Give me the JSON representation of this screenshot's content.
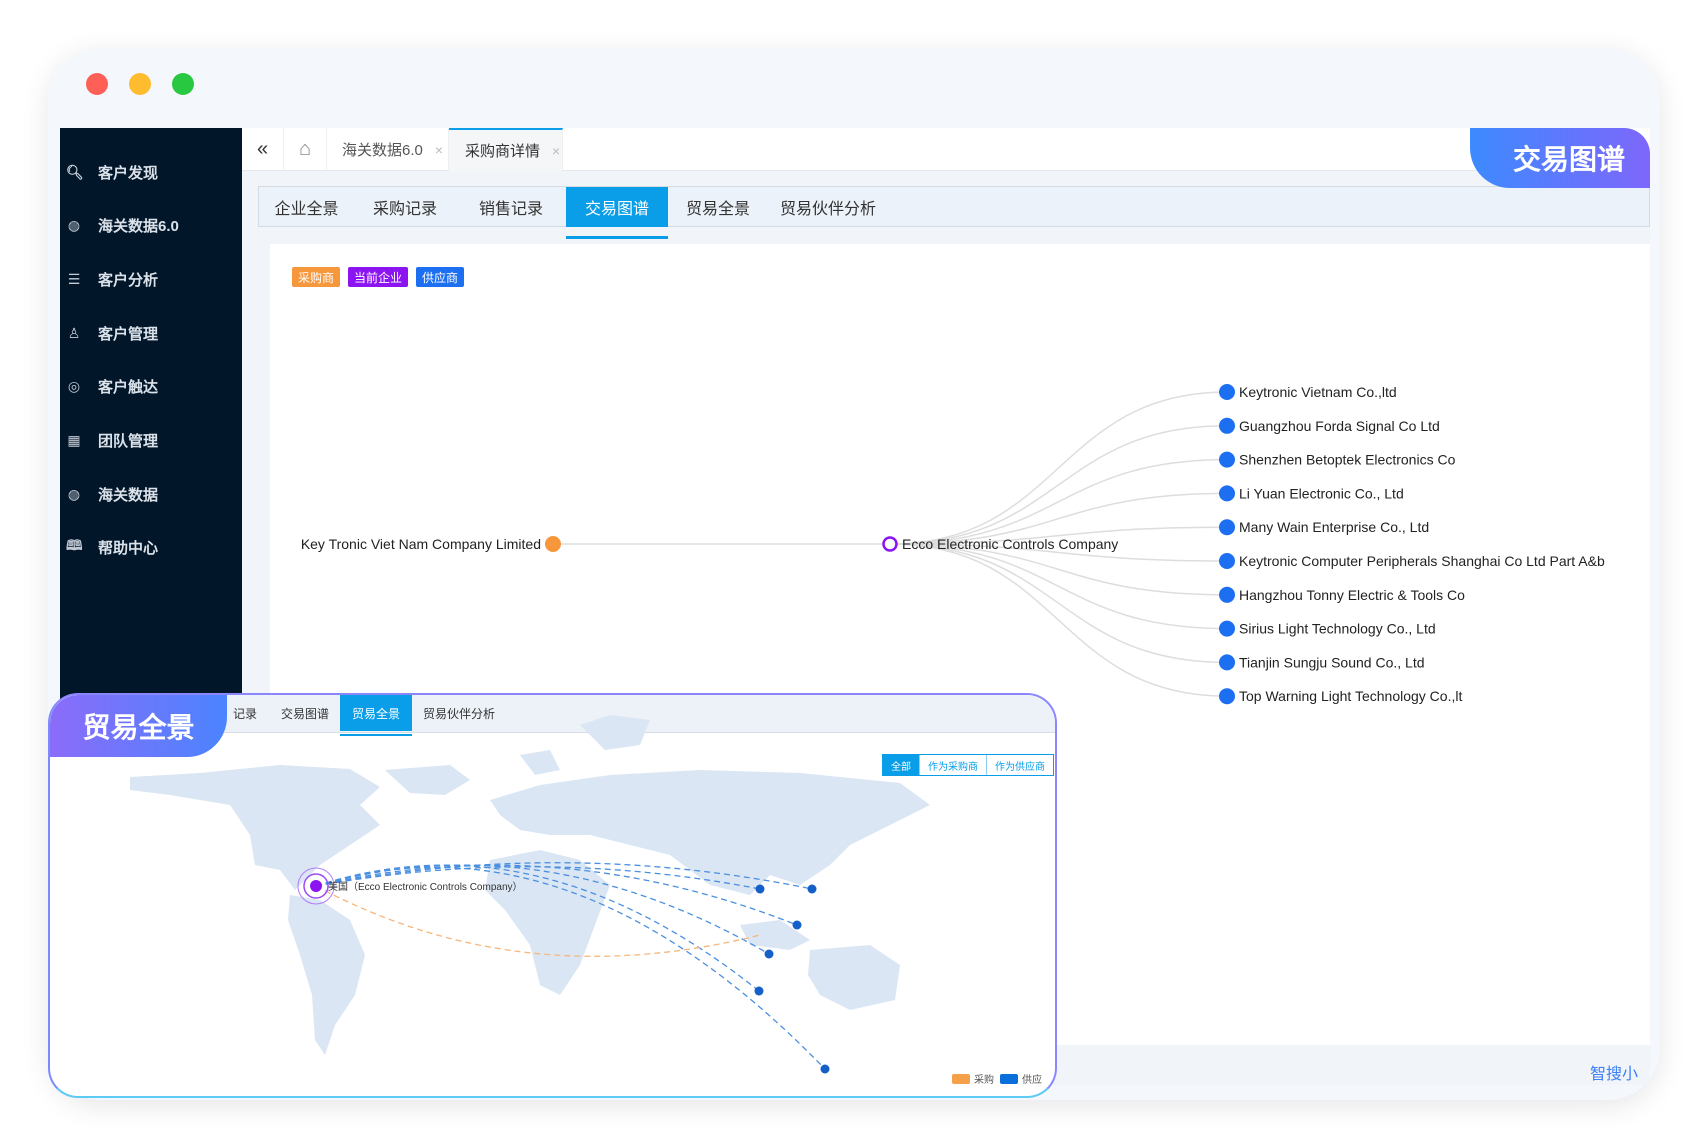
{
  "window": {
    "controls": [
      "close",
      "minimize",
      "maximize"
    ],
    "colors": {
      "close": "#fe5f57",
      "minimize": "#febc2e",
      "maximize": "#28c840"
    }
  },
  "sidebar": {
    "items": [
      {
        "label": "客户发现",
        "icon": "search-icon"
      },
      {
        "label": "海关数据6.0",
        "icon": "globe-icon"
      },
      {
        "label": "客户分析",
        "icon": "list-icon"
      },
      {
        "label": "客户管理",
        "icon": "user-icon"
      },
      {
        "label": "客户触达",
        "icon": "target-icon"
      },
      {
        "label": "团队管理",
        "icon": "grid-icon"
      },
      {
        "label": "海关数据",
        "icon": "globe-icon"
      },
      {
        "label": "帮助中心",
        "icon": "book-icon"
      }
    ]
  },
  "tabbar": {
    "collapse": "«",
    "home": "⌂",
    "tabs": [
      {
        "label": "海关数据6.0",
        "close": "×"
      },
      {
        "label": "采购商详情",
        "close": "×",
        "active": true
      }
    ]
  },
  "subtabs": [
    {
      "label": "企业全景"
    },
    {
      "label": "采购记录"
    },
    {
      "label": "销售记录"
    },
    {
      "label": "交易图谱",
      "active": true
    },
    {
      "label": "贸易全景"
    },
    {
      "label": "贸易伙伴分析"
    }
  ],
  "legend_tags": [
    {
      "label": "采购商",
      "color": "#f7973c"
    },
    {
      "label": "当前企业",
      "color": "#8b14f0"
    },
    {
      "label": "供应商",
      "color": "#1d6ff2"
    }
  ],
  "graph": {
    "buyer": "Key Tronic Viet Nam Company Limited",
    "current": "Ecco Electronic Controls Company",
    "suppliers": [
      "Keytronic Vietnam Co.,ltd",
      "Guangzhou Forda Signal Co Ltd",
      "Shenzhen Betoptek Electronics Co",
      "Li Yuan Electronic Co., Ltd",
      "Many Wain Enterprise Co., Ltd",
      "Keytronic Computer Peripherals Shanghai Co Ltd Part A&b",
      "Hangzhou Tonny Electric & Tools Co",
      "Sirius Light Technology Co., Ltd",
      "Tianjin Sungju Sound Co., Ltd",
      "Top Warning Light Technology Co.,lt"
    ]
  },
  "badges": {
    "graph": "交易图谱",
    "overview": "贸易全景"
  },
  "footer_brand": "智搜小",
  "overlay": {
    "tabs": [
      {
        "label": "记录"
      },
      {
        "label": "交易图谱"
      },
      {
        "label": "贸易全景",
        "active": true
      },
      {
        "label": "贸易伙伴分析"
      }
    ],
    "filters": [
      {
        "label": "全部",
        "active": true
      },
      {
        "label": "作为采购商"
      },
      {
        "label": "作为供应商"
      }
    ],
    "origin_label": "美国（Ecco Electronic Controls Company）",
    "legend": [
      {
        "label": "采购",
        "color": "#f7a04a"
      },
      {
        "label": "供应",
        "color": "#0a6fd8"
      }
    ]
  }
}
